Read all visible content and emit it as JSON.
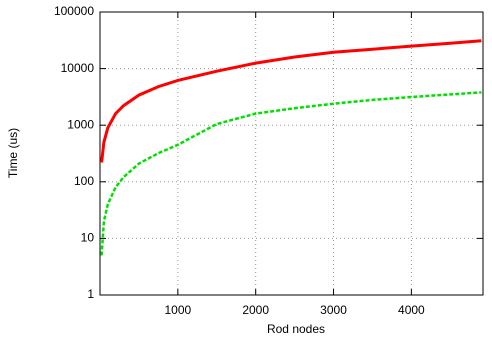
{
  "chart_data": {
    "type": "line",
    "x_label": "Rod nodes",
    "y_label": "Time (us)",
    "x": [
      20,
      50,
      100,
      200,
      300,
      500,
      750,
      1000,
      1500,
      2000,
      2500,
      3000,
      3500,
      4000,
      4500,
      4900
    ],
    "series": [
      {
        "color": "#ff0000",
        "dashed": false,
        "values": [
          220,
          500,
          900,
          1600,
          2200,
          3400,
          4800,
          6200,
          9000,
          12500,
          16000,
          19500,
          22000,
          25000,
          28000,
          31000
        ]
      },
      {
        "color": "#00e000",
        "dashed": true,
        "values": [
          5,
          20,
          40,
          80,
          120,
          210,
          320,
          450,
          1050,
          1600,
          2000,
          2400,
          2800,
          3150,
          3500,
          3800
        ]
      }
    ],
    "xlim": [
      0,
      4920
    ],
    "xticks": [
      1000,
      2000,
      3000,
      4000
    ],
    "ylim": [
      1,
      100000
    ],
    "yticks": [
      1,
      10,
      100,
      1000,
      10000,
      100000
    ],
    "log_y": true,
    "grid": true
  }
}
